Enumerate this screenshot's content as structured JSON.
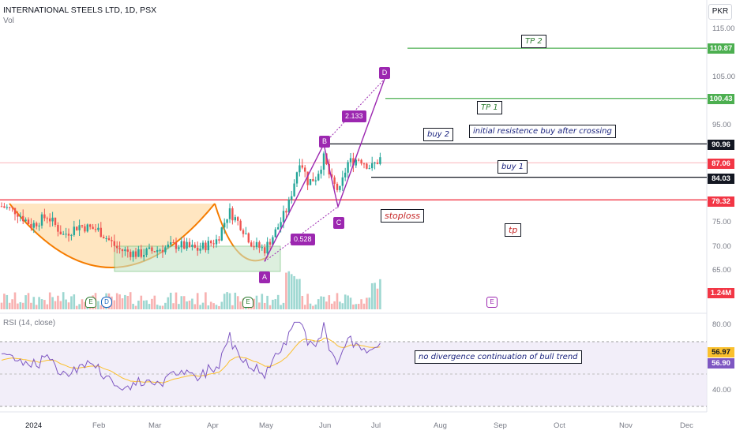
{
  "header": {
    "title": "INTERNATIONAL STEELS LTD, 1D, PSX",
    "volume_label": "Vol",
    "currency": "PKR"
  },
  "rsi_label": "RSI (14, close)",
  "price_axis": [
    "115.00",
    "105.00",
    "95.00",
    "75.00",
    "70.00",
    "65.00"
  ],
  "rsi_axis": [
    "80.00",
    "40.00"
  ],
  "x_axis": [
    "2024",
    "Feb",
    "Mar",
    "Apr",
    "May",
    "Jun",
    "Jul",
    "Aug",
    "Sep",
    "Oct",
    "Nov",
    "Dec"
  ],
  "price_tags": {
    "tp2": "110.87",
    "tp1": "100.43",
    "b90": "90.96",
    "last": "87.06",
    "b84": "84.03",
    "stop": "79.32",
    "vol": "1.24M",
    "rsi_ma": "56.97",
    "rsi": "56.90"
  },
  "notes": {
    "tp2": "TP 2",
    "tp1": "TP 1",
    "buy2": "buy 2",
    "initial": "initial resistence buy after crossing",
    "buy1": "buy 1",
    "stoploss": "stoploss",
    "tp": "tp",
    "rsi_note": "no divergence continuation of bull trend"
  },
  "pattern": {
    "a": "A",
    "b": "B",
    "c": "C",
    "d": "D",
    "ratio1": "0.528",
    "ratio2": "2.133"
  },
  "events": [
    "E",
    "D",
    "E",
    "E"
  ],
  "colors": {
    "up": "#26a69a",
    "down": "#ef5350",
    "tp_line": "#4caf50",
    "stop_line": "#f23645",
    "pattern": "#9c27b0",
    "cup_fill": "#ffe0b2",
    "cup_line": "#f57c00"
  },
  "chart_data": {
    "type": "candlestick",
    "ylim": [
      61,
      119
    ],
    "levels": [
      110.87,
      100.43,
      90.96,
      87.06,
      84.03,
      79.32
    ],
    "abcd": {
      "A": 66.5,
      "B": 90.9,
      "C": 77.9,
      "D": 104.5
    },
    "last_volume": "1.24M",
    "rsi": {
      "last": 56.9,
      "ma": 56.97,
      "bands": [
        70,
        50,
        30
      ]
    }
  }
}
